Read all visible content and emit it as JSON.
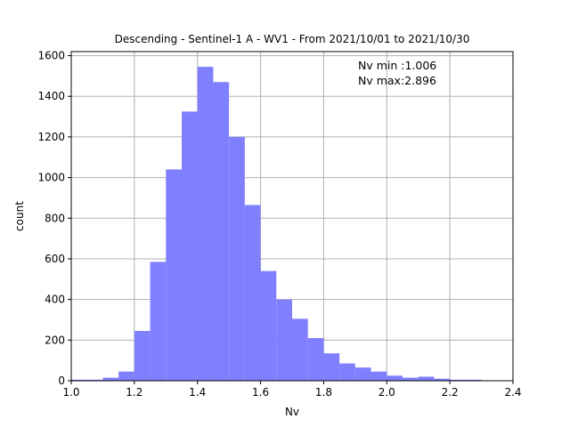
{
  "chart_data": {
    "type": "bar",
    "title": "Descending - Sentinel-1 A - WV1 - From 2021/10/01 to 2021/10/30",
    "xlabel": "Nv",
    "ylabel": "count",
    "xlim": [
      1.0,
      2.4
    ],
    "ylim": [
      0,
      1620
    ],
    "grid": true,
    "bar_color": "#8080ff",
    "x_ticks": [
      "1.0",
      "1.2",
      "1.4",
      "1.6",
      "1.8",
      "2.0",
      "2.2",
      "2.4"
    ],
    "y_ticks": [
      "0",
      "200",
      "400",
      "600",
      "800",
      "1000",
      "1200",
      "1400",
      "1600"
    ],
    "annotations": [
      "Nv min :1.006",
      "Nv max:2.896"
    ],
    "bin_edges": [
      1.0,
      1.05,
      1.1,
      1.15,
      1.2,
      1.25,
      1.3,
      1.35,
      1.4,
      1.45,
      1.5,
      1.55,
      1.6,
      1.65,
      1.7,
      1.75,
      1.8,
      1.85,
      1.9,
      1.95,
      2.0,
      2.05,
      2.1,
      2.15,
      2.2,
      2.25,
      2.3
    ],
    "counts": [
      5,
      5,
      15,
      45,
      245,
      585,
      1040,
      1325,
      1545,
      1470,
      1200,
      865,
      540,
      400,
      305,
      210,
      135,
      85,
      65,
      45,
      25,
      15,
      20,
      10,
      5,
      5
    ]
  }
}
